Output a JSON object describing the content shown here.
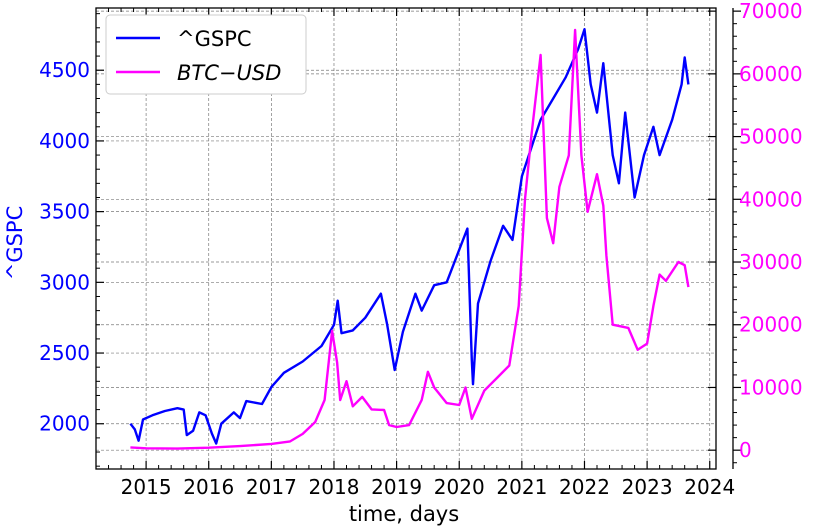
{
  "chart_data": {
    "type": "line",
    "xlabel": "time, days",
    "ylabel_left": "^GSPC",
    "ylabel_right": "",
    "x_ticks": [
      "2015",
      "2016",
      "2017",
      "2018",
      "2019",
      "2020",
      "2021",
      "2022",
      "2023",
      "2024"
    ],
    "x_range": [
      2014.2,
      2024.1
    ],
    "y_left_ticks": [
      "2000",
      "2500",
      "3000",
      "3500",
      "4000",
      "4500"
    ],
    "y_left_range": [
      1680,
      4940
    ],
    "y_right_ticks": [
      "0",
      "10000",
      "20000",
      "30000",
      "40000",
      "50000",
      "60000",
      "70000"
    ],
    "y_right_range": [
      -3000,
      70500
    ],
    "grid": true,
    "legend_position": "top-left",
    "series": [
      {
        "name": "^GSPC",
        "legend_label": "^GSPC",
        "axis": "left",
        "color": "#0000ff",
        "points": [
          [
            2014.75,
            2000
          ],
          [
            2014.82,
            1960
          ],
          [
            2014.88,
            1880
          ],
          [
            2014.95,
            2030
          ],
          [
            2015.1,
            2060
          ],
          [
            2015.3,
            2090
          ],
          [
            2015.5,
            2110
          ],
          [
            2015.6,
            2100
          ],
          [
            2015.65,
            1920
          ],
          [
            2015.75,
            1950
          ],
          [
            2015.85,
            2080
          ],
          [
            2015.95,
            2060
          ],
          [
            2016.05,
            1930
          ],
          [
            2016.12,
            1860
          ],
          [
            2016.2,
            2000
          ],
          [
            2016.4,
            2080
          ],
          [
            2016.5,
            2040
          ],
          [
            2016.6,
            2160
          ],
          [
            2016.85,
            2140
          ],
          [
            2017.0,
            2260
          ],
          [
            2017.2,
            2360
          ],
          [
            2017.5,
            2440
          ],
          [
            2017.8,
            2550
          ],
          [
            2018.0,
            2700
          ],
          [
            2018.06,
            2870
          ],
          [
            2018.12,
            2640
          ],
          [
            2018.3,
            2660
          ],
          [
            2018.5,
            2750
          ],
          [
            2018.75,
            2920
          ],
          [
            2018.85,
            2700
          ],
          [
            2018.97,
            2380
          ],
          [
            2019.1,
            2650
          ],
          [
            2019.3,
            2920
          ],
          [
            2019.4,
            2800
          ],
          [
            2019.6,
            2980
          ],
          [
            2019.8,
            3000
          ],
          [
            2020.0,
            3230
          ],
          [
            2020.13,
            3380
          ],
          [
            2020.2,
            2450
          ],
          [
            2020.22,
            2280
          ],
          [
            2020.3,
            2850
          ],
          [
            2020.5,
            3150
          ],
          [
            2020.7,
            3400
          ],
          [
            2020.85,
            3300
          ],
          [
            2021.0,
            3750
          ],
          [
            2021.3,
            4150
          ],
          [
            2021.5,
            4300
          ],
          [
            2021.7,
            4450
          ],
          [
            2021.9,
            4650
          ],
          [
            2022.0,
            4790
          ],
          [
            2022.1,
            4400
          ],
          [
            2022.2,
            4200
          ],
          [
            2022.3,
            4550
          ],
          [
            2022.45,
            3900
          ],
          [
            2022.55,
            3700
          ],
          [
            2022.65,
            4200
          ],
          [
            2022.8,
            3600
          ],
          [
            2022.95,
            3900
          ],
          [
            2023.1,
            4100
          ],
          [
            2023.2,
            3900
          ],
          [
            2023.4,
            4150
          ],
          [
            2023.55,
            4400
          ],
          [
            2023.6,
            4590
          ],
          [
            2023.66,
            4400
          ]
        ]
      },
      {
        "name": "BTC-USD",
        "legend_label": "BTC−USD",
        "axis": "right",
        "color": "#ff00ff",
        "points": [
          [
            2014.75,
            450
          ],
          [
            2015.0,
            300
          ],
          [
            2015.5,
            250
          ],
          [
            2016.0,
            400
          ],
          [
            2016.5,
            650
          ],
          [
            2017.0,
            1000
          ],
          [
            2017.3,
            1400
          ],
          [
            2017.5,
            2600
          ],
          [
            2017.7,
            4500
          ],
          [
            2017.85,
            8000
          ],
          [
            2017.97,
            19000
          ],
          [
            2018.05,
            14000
          ],
          [
            2018.1,
            8000
          ],
          [
            2018.2,
            11000
          ],
          [
            2018.3,
            7000
          ],
          [
            2018.45,
            8500
          ],
          [
            2018.6,
            6500
          ],
          [
            2018.8,
            6400
          ],
          [
            2018.88,
            4000
          ],
          [
            2019.0,
            3700
          ],
          [
            2019.2,
            4000
          ],
          [
            2019.4,
            8000
          ],
          [
            2019.5,
            12500
          ],
          [
            2019.6,
            10000
          ],
          [
            2019.8,
            7500
          ],
          [
            2020.0,
            7200
          ],
          [
            2020.1,
            10000
          ],
          [
            2020.2,
            5000
          ],
          [
            2020.4,
            9500
          ],
          [
            2020.6,
            11500
          ],
          [
            2020.8,
            13500
          ],
          [
            2020.95,
            23000
          ],
          [
            2021.05,
            40000
          ],
          [
            2021.15,
            50000
          ],
          [
            2021.3,
            63000
          ],
          [
            2021.4,
            37000
          ],
          [
            2021.5,
            33000
          ],
          [
            2021.6,
            42000
          ],
          [
            2021.75,
            47000
          ],
          [
            2021.85,
            67000
          ],
          [
            2021.95,
            47000
          ],
          [
            2022.05,
            38000
          ],
          [
            2022.2,
            44000
          ],
          [
            2022.3,
            39000
          ],
          [
            2022.35,
            31000
          ],
          [
            2022.45,
            20000
          ],
          [
            2022.7,
            19500
          ],
          [
            2022.85,
            16000
          ],
          [
            2023.0,
            17000
          ],
          [
            2023.1,
            23000
          ],
          [
            2023.2,
            28000
          ],
          [
            2023.3,
            27000
          ],
          [
            2023.5,
            30000
          ],
          [
            2023.6,
            29500
          ],
          [
            2023.66,
            26000
          ]
        ]
      }
    ]
  }
}
